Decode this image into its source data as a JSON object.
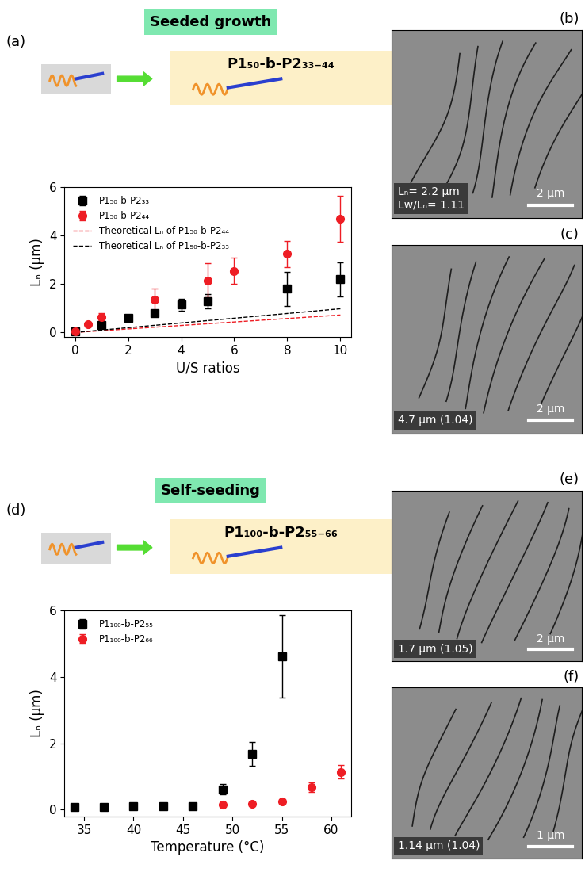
{
  "chart_data": [
    {
      "type": "scatter",
      "panel_label": "(a)",
      "section_title": "Seeded growth",
      "schematic_label": "P1₅₀-b-P2₃₃₋₄₄",
      "xlabel": "U/S ratios",
      "ylabel": "Lₙ (μm)",
      "xlim": [
        -0.4,
        10.4
      ],
      "ylim": [
        -0.2,
        6
      ],
      "xticks": [
        0,
        2,
        4,
        6,
        8,
        10
      ],
      "yticks": [
        0,
        2,
        4,
        6
      ],
      "legend": "upper left",
      "series": [
        {
          "name": "P1₅₀-b-P2₃₃",
          "color": "#000000",
          "marker": "square",
          "x": [
            0,
            1,
            2,
            3,
            4,
            5,
            8,
            10
          ],
          "values": [
            0.05,
            0.3,
            0.6,
            0.8,
            1.15,
            1.3,
            1.8,
            2.2
          ],
          "errors": [
            0,
            0.05,
            0.12,
            0.1,
            0.25,
            0.3,
            0.7,
            0.7
          ]
        },
        {
          "name": "P1₅₀-b-P2₄₄",
          "color": "#ee1d24",
          "marker": "circle",
          "x": [
            0,
            0.5,
            1,
            3,
            5,
            6,
            8,
            10
          ],
          "values": [
            0.05,
            0.35,
            0.65,
            1.35,
            2.15,
            2.55,
            3.25,
            4.7
          ],
          "errors": [
            0,
            0.05,
            0.15,
            0.45,
            0.7,
            0.55,
            0.55,
            0.95
          ]
        },
        {
          "name": "Theoretical Lₙ of P1₅₀-b-P2₄₄",
          "type": "line",
          "color": "#ee1d24",
          "line_style": "dashed",
          "x": [
            0,
            10
          ],
          "values": [
            0,
            0.72
          ]
        },
        {
          "name": "Theoretical Lₙ of P1₅₀-b-P2₃₃",
          "type": "line",
          "color": "#000000",
          "line_style": "dashed",
          "x": [
            0,
            10
          ],
          "values": [
            0,
            0.98
          ]
        }
      ]
    },
    {
      "type": "scatter",
      "panel_label": "(d)",
      "section_title": "Self-seeding",
      "schematic_label": "P1₁₀₀-b-P2₅₅₋₆₆",
      "xlabel": "Temperature (°C)",
      "ylabel": "Lₙ (μm)",
      "xlim": [
        33,
        62
      ],
      "ylim": [
        -0.2,
        6
      ],
      "xticks": [
        35,
        40,
        45,
        50,
        55,
        60
      ],
      "yticks": [
        0,
        2,
        4,
        6
      ],
      "legend": "upper left",
      "series": [
        {
          "name": "P1₁₀₀-b-P2₅₅",
          "color": "#000000",
          "marker": "square",
          "x": [
            34,
            37,
            40,
            43,
            46,
            49,
            52,
            55
          ],
          "values": [
            0.08,
            0.08,
            0.1,
            0.1,
            0.1,
            0.62,
            1.68,
            4.62
          ],
          "errors": [
            0.02,
            0.02,
            0.02,
            0.02,
            0.02,
            0.15,
            0.35,
            1.25
          ]
        },
        {
          "name": "P1₁₀₀-b-P2₆₆",
          "color": "#ee1d24",
          "marker": "circle",
          "x": [
            49,
            52,
            55,
            58,
            61
          ],
          "values": [
            0.15,
            0.18,
            0.25,
            0.68,
            1.14
          ],
          "errors": [
            0.03,
            0.03,
            0.05,
            0.15,
            0.2
          ]
        }
      ]
    }
  ],
  "images": [
    {
      "panel_label": "(b)",
      "texts": [
        "Lₙ= 2.2 μm",
        "Lw/Lₙ= 1.11"
      ],
      "scale_bar": "2 μm"
    },
    {
      "panel_label": "(c)",
      "texts": [
        "4.7 μm (1.04)"
      ],
      "scale_bar": "2 μm"
    },
    {
      "panel_label": "(e)",
      "texts": [
        "1.7 μm (1.05)"
      ],
      "scale_bar": "2 μm"
    },
    {
      "panel_label": "(f)",
      "texts": [
        "1.14 μm (1.04)"
      ],
      "scale_bar": "1 μm"
    }
  ]
}
